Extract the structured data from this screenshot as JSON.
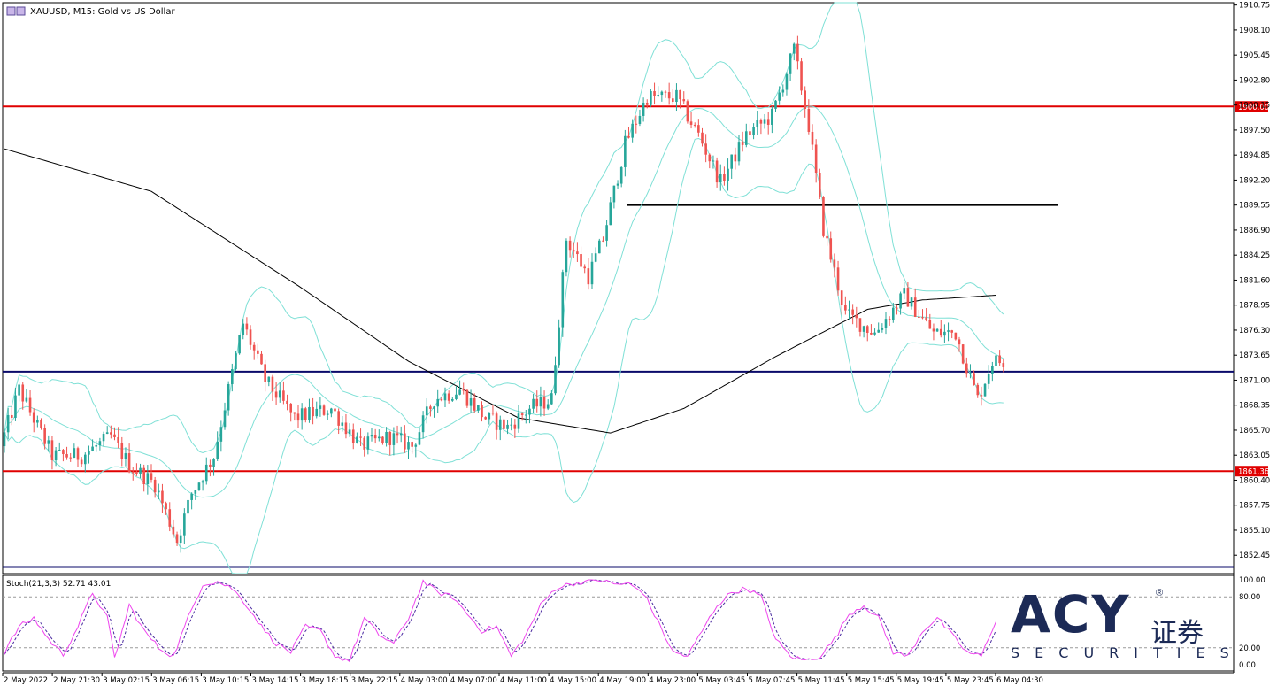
{
  "header": {
    "symbol_label": "XAUUSD, M15:  Gold vs US Dollar"
  },
  "indicator": {
    "label": "Stoch(21,3,3) 52.71 43.01",
    "k_value": 52.71,
    "d_value": 43.01
  },
  "logo": {
    "brand": "ACY",
    "cn_text": "证券",
    "securities": "SECURITIES",
    "registered_mark": "®"
  },
  "colors": {
    "bull": "#26a69a",
    "bear": "#ef5350",
    "bollinger": "#7fe0d6",
    "moving_average": "#000000",
    "red_level": "#e00000",
    "navy_level": "#0a0a6a",
    "stoch_main": "#ee44ee",
    "stoch_signal": "#4a2aa0"
  },
  "chart_data": [
    {
      "type": "candlestick",
      "symbol": "XAUUSD",
      "timeframe": "M15",
      "y_axis": {
        "ticks": [
          1910.75,
          1908.1,
          1905.45,
          1902.8,
          1900.15,
          1897.5,
          1894.85,
          1892.2,
          1889.55,
          1886.9,
          1884.25,
          1881.6,
          1878.95,
          1876.3,
          1873.65,
          1871.0,
          1868.35,
          1865.7,
          1863.05,
          1860.4,
          1857.75,
          1855.1,
          1852.45
        ],
        "range": [
          1850.5,
          1911.0
        ]
      },
      "x_axis": {
        "ticks": [
          "2 May 2022",
          "2 May 21:30",
          "3 May 02:15",
          "3 May 06:15",
          "3 May 10:15",
          "3 May 14:15",
          "3 May 18:15",
          "3 May 22:15",
          "4 May 03:00",
          "4 May 07:00",
          "4 May 11:00",
          "4 May 15:00",
          "4 May 19:00",
          "4 May 23:00",
          "5 May 03:45",
          "5 May 07:45",
          "5 May 11:45",
          "5 May 15:45",
          "5 May 19:45",
          "5 May 23:45",
          "6 May 04:30"
        ]
      },
      "horizontal_levels": [
        {
          "price": 1900.0,
          "color": "red",
          "label": "1900.00",
          "badge": true
        },
        {
          "price": 1889.55,
          "color": "black",
          "segment": [
            "4 May 19:00",
            "6 May 06:00"
          ]
        },
        {
          "price": 1871.9,
          "color": "navy"
        },
        {
          "price": 1861.36,
          "color": "red",
          "label": "1861.36",
          "badge": true
        },
        {
          "price": 1851.2,
          "color": "navy"
        }
      ],
      "path_anchors": [
        [
          0,
          1864
        ],
        [
          5,
          1870
        ],
        [
          14,
          1863
        ],
        [
          22,
          1863
        ],
        [
          30,
          1865
        ],
        [
          35,
          1862
        ],
        [
          42,
          1860
        ],
        [
          48,
          1854
        ],
        [
          52,
          1859
        ],
        [
          58,
          1863
        ],
        [
          62,
          1870
        ],
        [
          66,
          1877
        ],
        [
          72,
          1871
        ],
        [
          80,
          1867
        ],
        [
          90,
          1868
        ],
        [
          98,
          1864
        ],
        [
          106,
          1865
        ],
        [
          112,
          1864
        ],
        [
          118,
          1869
        ],
        [
          125,
          1870
        ],
        [
          132,
          1867
        ],
        [
          138,
          1866
        ],
        [
          144,
          1868
        ],
        [
          150,
          1869
        ],
        [
          154,
          1886
        ],
        [
          160,
          1882
        ],
        [
          164,
          1886
        ],
        [
          170,
          1896
        ],
        [
          176,
          1901
        ],
        [
          184,
          1901
        ],
        [
          190,
          1897
        ],
        [
          196,
          1892
        ],
        [
          203,
          1897
        ],
        [
          210,
          1899
        ],
        [
          216,
          1906
        ],
        [
          220,
          1898
        ],
        [
          224,
          1887
        ],
        [
          230,
          1878
        ],
        [
          238,
          1876
        ],
        [
          246,
          1880
        ],
        [
          254,
          1876
        ],
        [
          260,
          1876
        ],
        [
          266,
          1869
        ],
        [
          270,
          1873
        ]
      ],
      "bollinger_bands": {
        "period": 20,
        "deviations": 2
      },
      "moving_average": {
        "period": 200
      }
    },
    {
      "type": "line",
      "name": "Stoch(21,3,3)",
      "ylim": [
        0,
        100
      ],
      "y_ticks": [
        100.0,
        80.0,
        20.0,
        0.0
      ],
      "levels": [
        80,
        20
      ],
      "last_values": {
        "k": 52.71,
        "d": 43.01
      },
      "k_anchors": [
        [
          0,
          15
        ],
        [
          4,
          45
        ],
        [
          8,
          55
        ],
        [
          12,
          30
        ],
        [
          16,
          12
        ],
        [
          20,
          45
        ],
        [
          24,
          85
        ],
        [
          28,
          55
        ],
        [
          30,
          8
        ],
        [
          34,
          70
        ],
        [
          38,
          40
        ],
        [
          42,
          20
        ],
        [
          46,
          10
        ],
        [
          50,
          55
        ],
        [
          54,
          95
        ],
        [
          58,
          98
        ],
        [
          62,
          90
        ],
        [
          66,
          70
        ],
        [
          70,
          45
        ],
        [
          74,
          25
        ],
        [
          78,
          15
        ],
        [
          82,
          45
        ],
        [
          86,
          40
        ],
        [
          90,
          10
        ],
        [
          94,
          5
        ],
        [
          98,
          55
        ],
        [
          102,
          35
        ],
        [
          106,
          25
        ],
        [
          110,
          55
        ],
        [
          114,
          98
        ],
        [
          118,
          85
        ],
        [
          122,
          80
        ],
        [
          126,
          60
        ],
        [
          130,
          40
        ],
        [
          134,
          45
        ],
        [
          138,
          10
        ],
        [
          142,
          35
        ],
        [
          146,
          70
        ],
        [
          150,
          90
        ],
        [
          154,
          95
        ],
        [
          158,
          98
        ],
        [
          162,
          100
        ],
        [
          166,
          95
        ],
        [
          170,
          95
        ],
        [
          174,
          85
        ],
        [
          178,
          50
        ],
        [
          182,
          15
        ],
        [
          186,
          10
        ],
        [
          190,
          40
        ],
        [
          194,
          70
        ],
        [
          198,
          85
        ],
        [
          202,
          90
        ],
        [
          206,
          80
        ],
        [
          210,
          30
        ],
        [
          214,
          10
        ],
        [
          218,
          5
        ],
        [
          222,
          10
        ],
        [
          226,
          30
        ],
        [
          230,
          60
        ],
        [
          234,
          70
        ],
        [
          238,
          55
        ],
        [
          242,
          15
        ],
        [
          246,
          10
        ],
        [
          250,
          40
        ],
        [
          254,
          55
        ],
        [
          258,
          35
        ],
        [
          262,
          15
        ],
        [
          266,
          10
        ],
        [
          270,
          53
        ]
      ]
    }
  ]
}
